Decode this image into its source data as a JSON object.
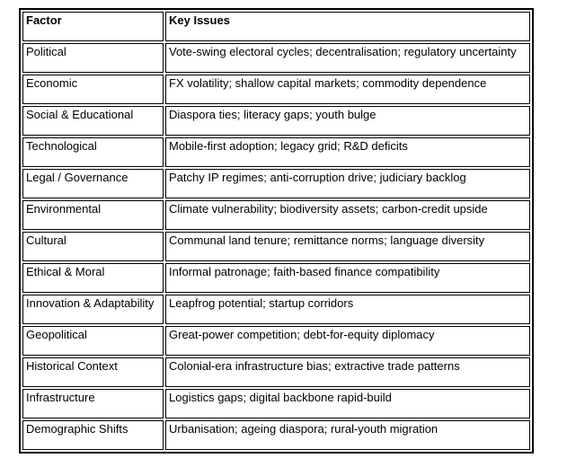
{
  "table": {
    "headers": {
      "factor": "Factor",
      "key_issues": "Key Issues"
    },
    "rows": [
      {
        "factor": "Political",
        "key_issues": "Vote-swing electoral cycles; decentralisation; regulatory uncertainty"
      },
      {
        "factor": "Economic",
        "key_issues": "FX volatility; shallow capital markets; commodity dependence"
      },
      {
        "factor": "Social & Educational",
        "key_issues": "Diaspora ties; literacy gaps; youth bulge"
      },
      {
        "factor": "Technological",
        "key_issues": "Mobile-first adoption; legacy grid; R&D deficits"
      },
      {
        "factor": "Legal / Governance",
        "key_issues": "Patchy IP regimes; anti-corruption drive; judiciary backlog"
      },
      {
        "factor": "Environmental",
        "key_issues": "Climate vulnerability; biodiversity assets; carbon-credit upside"
      },
      {
        "factor": "Cultural",
        "key_issues": "Communal land tenure; remittance norms; language diversity"
      },
      {
        "factor": "Ethical & Moral",
        "key_issues": "Informal patronage; faith-based finance compatibility"
      },
      {
        "factor": "Innovation & Adaptability",
        "key_issues": "Leapfrog potential; startup corridors"
      },
      {
        "factor": "Geopolitical",
        "key_issues": "Great-power competition; debt-for-equity diplomacy"
      },
      {
        "factor": "Historical Context",
        "key_issues": "Colonial-era infrastructure bias; extractive trade patterns"
      },
      {
        "factor": "Infrastructure",
        "key_issues": "Logistics gaps; digital backbone rapid-build"
      },
      {
        "factor": "Demographic Shifts",
        "key_issues": "Urbanisation; ageing diaspora; rural-youth migration"
      }
    ]
  }
}
